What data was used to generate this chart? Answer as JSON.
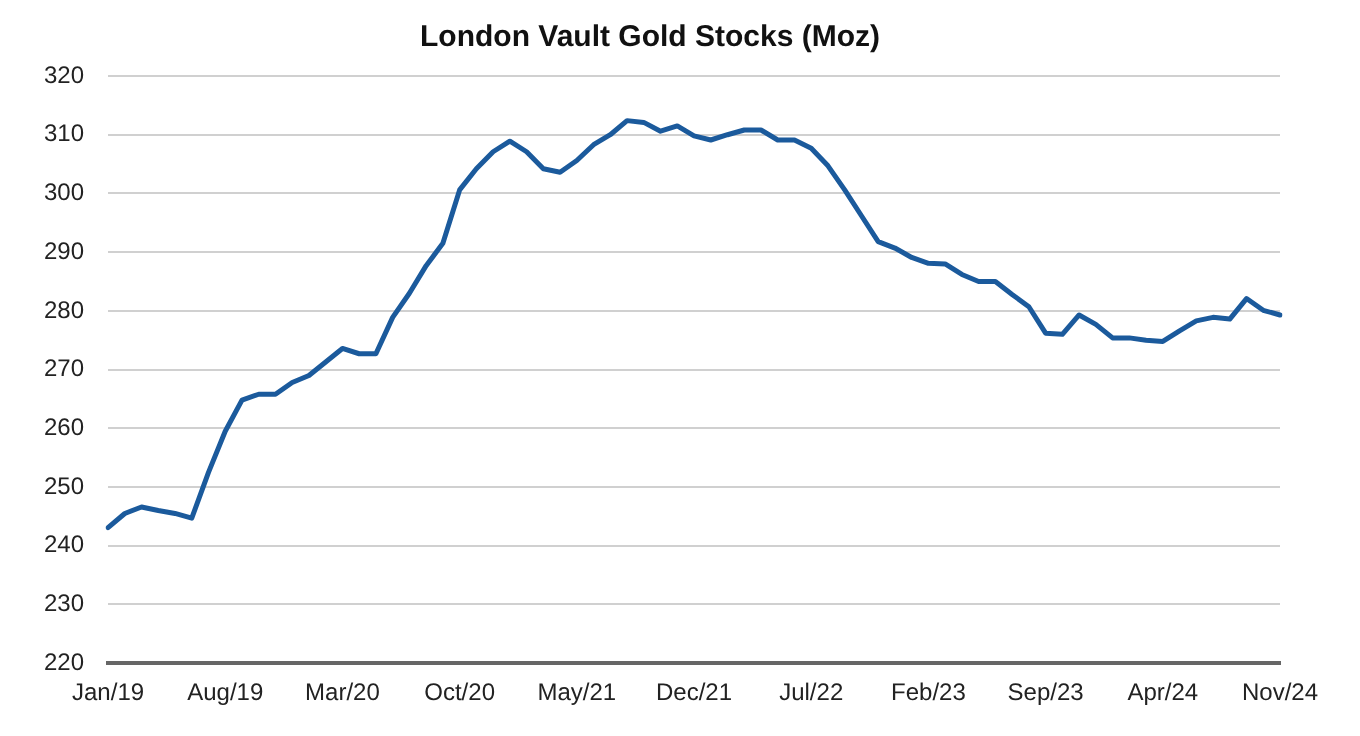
{
  "chart_data": {
    "type": "line",
    "title": "London Vault Gold Stocks (Moz)",
    "categories": [
      "Jan/19",
      null,
      null,
      null,
      null,
      null,
      null,
      "Aug/19",
      null,
      null,
      null,
      null,
      null,
      null,
      "Mar/20",
      null,
      null,
      null,
      null,
      null,
      null,
      "Oct/20",
      null,
      null,
      null,
      null,
      null,
      null,
      "May/21",
      null,
      null,
      null,
      null,
      null,
      null,
      "Dec/21",
      null,
      null,
      null,
      null,
      null,
      null,
      "Jul/22",
      null,
      null,
      null,
      null,
      null,
      null,
      "Feb/23",
      null,
      null,
      null,
      null,
      null,
      null,
      "Sep/23",
      null,
      null,
      null,
      null,
      null,
      null,
      "Apr/24",
      null,
      null,
      null,
      null,
      null,
      null,
      "Nov/24"
    ],
    "series": [
      {
        "color": "#1b5a9c",
        "values": [
          243.1,
          245.5,
          246.6,
          246,
          245.5,
          244.7,
          252.5,
          259.5,
          264.8,
          265.8,
          265.8,
          267.8,
          269,
          271.3,
          273.6,
          272.7,
          272.7,
          278.9,
          283,
          287.7,
          291.5,
          300.6,
          304.2,
          307.1,
          308.9,
          307.1,
          304.2,
          303.6,
          305.6,
          308.3,
          310,
          312.4,
          312.1,
          310.6,
          311.5,
          309.8,
          309.1,
          310,
          310.8,
          310.8,
          309.1,
          309.1,
          307.7,
          304.7,
          300.6,
          296.2,
          291.8,
          290.7,
          289.1,
          288.1,
          288,
          286.2,
          285,
          285,
          282.8,
          280.7,
          276.2,
          276,
          279.3,
          277.7,
          275.4,
          275.4,
          275,
          274.8,
          276.6,
          278.3,
          278.9,
          278.6,
          282.1,
          280.1,
          279.3
        ]
      }
    ],
    "ylim": [
      220,
      320
    ],
    "yticks": [
      220,
      230,
      240,
      250,
      260,
      270,
      280,
      290,
      300,
      310,
      320
    ],
    "grid": "y",
    "legend": false,
    "marker": "none",
    "line_style": "solid"
  }
}
